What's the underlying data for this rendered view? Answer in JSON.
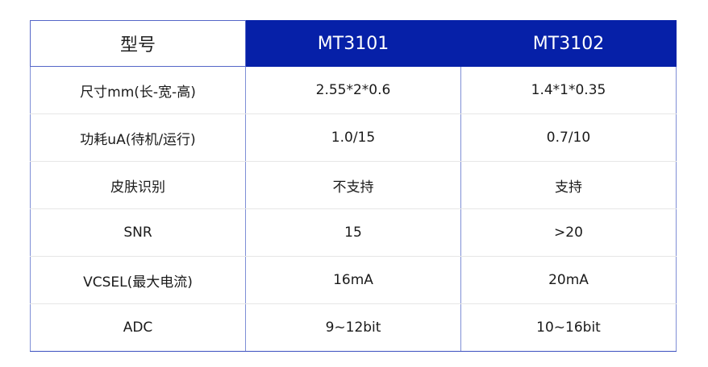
{
  "header": {
    "label": "型号",
    "models": [
      "MT3101",
      "MT3102"
    ]
  },
  "rows": [
    {
      "label": "尺寸mm(长-宽-高)",
      "values": [
        "2.55*2*0.6",
        "1.4*1*0.35"
      ]
    },
    {
      "label": "功耗uA(待机/运行)",
      "values": [
        "1.0/15",
        "0.7/10"
      ]
    },
    {
      "label": "皮肤识别",
      "values": [
        "不支持",
        "支持"
      ]
    },
    {
      "label": "SNR",
      "values": [
        "15",
        ">20"
      ]
    },
    {
      "label": "VCSEL(最大电流)",
      "values": [
        "16mA",
        "20mA"
      ]
    },
    {
      "label": "ADC",
      "values": [
        "9~12bit",
        "10~16bit"
      ]
    }
  ],
  "colors": {
    "header_bg": "#0620a8",
    "border": "#7f8fd6"
  }
}
